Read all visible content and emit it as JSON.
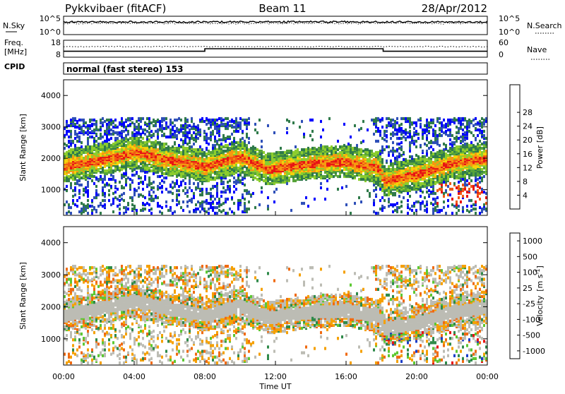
{
  "header": {
    "station": "Pykkvibaer (fitACF)",
    "beam": "Beam 11",
    "date": "28/Apr/2012"
  },
  "strips": {
    "nsky_label": "N.Sky",
    "nsky_ticks": [
      "10^5",
      "10^0"
    ],
    "nsearch_label": "N.Search",
    "nsearch_ticks": [
      "10^5",
      "10^0"
    ],
    "freq_label": "Freq.",
    "freq_unit": "[MHz]",
    "freq_ticks": [
      "18",
      "8"
    ],
    "freq_level_mhz": {
      "start": 11.5,
      "end": 11.5,
      "step_up": 13.0
    },
    "nave_label": "Nave",
    "nave_ticks": [
      "60",
      "0"
    ],
    "cpid_label": "CPID",
    "cpid_text": "normal (fast stereo) 153"
  },
  "chart_data": [
    {
      "type": "heatmap",
      "name": "power-panel",
      "ylabel": "Slant Range [km]",
      "ylim": [
        180,
        4500
      ],
      "yticks": [
        "1000",
        "2000",
        "3000",
        "4000"
      ],
      "colorbar_label": "Power [dB]",
      "colorbar_ticks": [
        "4",
        "8",
        "12",
        "16",
        "20",
        "24",
        "28"
      ],
      "colorbar_colors": [
        "#0000ff",
        "#2e4fb8",
        "#2f7a4a",
        "#57a33a",
        "#8ccd2e",
        "#f5d20a",
        "#f59a10",
        "#f05a14",
        "#e81414"
      ],
      "bands": [
        {
          "t": 0,
          "r": 1750
        },
        {
          "t": 2,
          "r": 1950
        },
        {
          "t": 4,
          "r": 2200
        },
        {
          "t": 6,
          "r": 1950
        },
        {
          "t": 8,
          "r": 1750
        },
        {
          "t": 10,
          "r": 2050
        },
        {
          "t": 11.5,
          "r": 1650
        },
        {
          "t": 14,
          "r": 1850
        },
        {
          "t": 16,
          "r": 1900
        },
        {
          "t": 17.8,
          "r": 1700
        },
        {
          "t": 18.1,
          "r": 1300
        },
        {
          "t": 20,
          "r": 1500
        },
        {
          "t": 22,
          "r": 1850
        },
        {
          "t": 24,
          "r": 2000
        }
      ]
    },
    {
      "type": "heatmap",
      "name": "velocity-panel",
      "ylabel": "Slant Range [km]",
      "xlabel": "Time UT",
      "ylim": [
        180,
        4500
      ],
      "yticks": [
        "1000",
        "2000",
        "3000",
        "4000"
      ],
      "xticks": [
        "00:00",
        "04:00",
        "08:00",
        "12:00",
        "16:00",
        "20:00",
        "00:00"
      ],
      "colorbar_label": "Velocity",
      "colorbar_unit": "[m s",
      "colorbar_unit_exp": "-1",
      "colorbar_unit_close": "]",
      "colorbar_ticks": [
        "1000",
        "500",
        "100",
        "25",
        "-25",
        "-100",
        "-500",
        "-1000"
      ],
      "colorbar_colors": [
        "#1a3cc8",
        "#2f8a4a",
        "#5cc832",
        "#bcbcb4",
        "#bcbcb4",
        "#f5a000",
        "#f06a10",
        "#e81414"
      ]
    }
  ],
  "colors": {
    "grey_ground": "#bcbcb4"
  }
}
